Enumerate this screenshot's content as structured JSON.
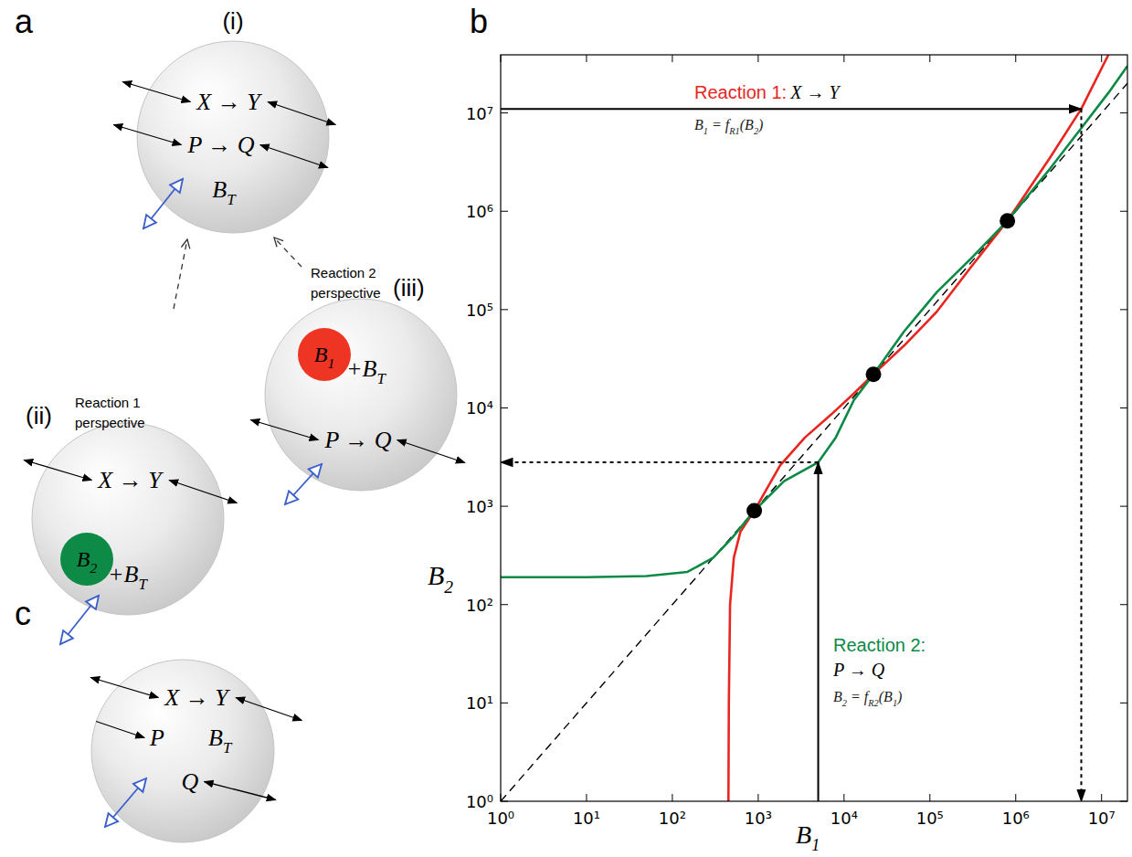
{
  "panel_labels": [
    "a",
    "b",
    "c"
  ],
  "diagram_a": {
    "cells": [
      {
        "label": "(i)",
        "reactions": [
          "X → Y",
          "P → Q"
        ],
        "pool": [
          "B",
          {
            "sub": "T"
          }
        ]
      },
      {
        "label": "(ii)",
        "caption": [
          "Reaction 1",
          "perspective"
        ],
        "reactions": [
          "X → Y"
        ],
        "buffer": [
          "B",
          {
            "sub": "2"
          }
        ],
        "pool": [
          "+B",
          {
            "sub": "T"
          }
        ]
      },
      {
        "label": "(iii)",
        "caption": [
          "Reaction 2",
          "perspective"
        ],
        "reactions": [
          "P → Q"
        ],
        "buffer": [
          "B",
          {
            "sub": "1"
          }
        ],
        "pool": [
          "+B",
          {
            "sub": "T"
          }
        ]
      }
    ]
  },
  "chart_data": {
    "type": "line",
    "log": true,
    "grid": false,
    "x_label": [
      "B",
      {
        "sub": "1"
      }
    ],
    "y_label": [
      "B",
      {
        "sub": "2"
      }
    ],
    "xlim": [
      1,
      20000000
    ],
    "ylim": [
      1,
      39000000
    ],
    "xticks": [
      {
        "value": 1,
        "label": "10⁰"
      },
      {
        "value": 10,
        "label": "10¹"
      },
      {
        "value": 100,
        "label": "10²"
      },
      {
        "value": 1000,
        "label": "10³"
      },
      {
        "value": 10000,
        "label": "10⁴"
      },
      {
        "value": 100000,
        "label": "10⁵"
      },
      {
        "value": 1000000,
        "label": "10⁶"
      },
      {
        "value": 10000000,
        "label": "10⁷"
      }
    ],
    "yticks": [
      {
        "value": 1,
        "label": "10⁰"
      },
      {
        "value": 10,
        "label": "10¹"
      },
      {
        "value": 100,
        "label": "10²"
      },
      {
        "value": 1000,
        "label": "10³"
      },
      {
        "value": 10000,
        "label": "10⁴"
      },
      {
        "value": 100000,
        "label": "10⁵"
      },
      {
        "value": 1000000,
        "label": "10⁶"
      },
      {
        "value": 10000000,
        "label": "10⁷"
      }
    ],
    "series": [
      {
        "color": "#000000",
        "line_style": "dashed",
        "x": [
          1,
          20000000
        ],
        "values": [
          1,
          20000000
        ]
      },
      {
        "color": "#e8261f",
        "line_style": "solid",
        "x": [
          450,
          455,
          470,
          520,
          620,
          900,
          1800,
          3500,
          7000,
          13000,
          22000,
          50000,
          120000,
          300000,
          800000,
          2500000,
          5800000,
          12000000
        ],
        "values": [
          1,
          10,
          100,
          300,
          550,
          900,
          2600,
          5000,
          8500,
          14000,
          22000,
          43000,
          95000,
          270000,
          800000,
          3500000,
          11000000,
          39000000
        ]
      },
      {
        "color": "#0b8a46",
        "line_style": "solid",
        "x": [
          1,
          10,
          50,
          150,
          300,
          500,
          900,
          2000,
          5000,
          8000,
          13000,
          22000,
          50000,
          120000,
          300000,
          800000,
          2500000,
          5800000,
          12000000,
          20000000
        ],
        "values": [
          190,
          190,
          195,
          215,
          300,
          480,
          900,
          1800,
          2800,
          5000,
          12000,
          22000,
          60000,
          150000,
          330000,
          800000,
          2700000,
          7000000,
          16000000,
          30000000
        ]
      },
      {
        "type": "scatter",
        "marker": "circle",
        "color": "#000000",
        "x": [
          900,
          22000,
          800000
        ],
        "values": [
          900,
          22000,
          800000
        ]
      }
    ],
    "arrows": [
      {
        "x": [
          5000,
          5000
        ],
        "y": [
          1,
          2800
        ],
        "line_style": "solid"
      },
      {
        "x": [
          5000,
          1
        ],
        "y": [
          2800,
          2800
        ],
        "line_style": "dotted"
      },
      {
        "x": [
          1,
          5800000
        ],
        "y": [
          11000000,
          11000000
        ],
        "line_style": "solid"
      },
      {
        "x": [
          5800000,
          5800000
        ],
        "y": [
          11000000,
          1
        ],
        "line_style": "dotted"
      }
    ],
    "annotations": [
      {
        "title": "Reaction 1:",
        "color": "#e8261f",
        "reaction": "X → Y",
        "formula": [
          "B",
          {
            "sub": "1"
          },
          " = f",
          {
            "sub": "R1"
          },
          "(B",
          {
            "sub": "2"
          },
          ")"
        ]
      },
      {
        "title": "Reaction 2:",
        "color": "#0b8a46",
        "reaction": "P → Q",
        "formula": [
          "B",
          {
            "sub": "2"
          },
          " = f",
          {
            "sub": "R2"
          },
          "(B",
          {
            "sub": "1"
          },
          ")"
        ]
      }
    ]
  },
  "diagram_c": {
    "reaction": "X → Y",
    "species": [
      "P",
      "Q"
    ],
    "pool": [
      "B",
      {
        "sub": "T"
      }
    ]
  }
}
